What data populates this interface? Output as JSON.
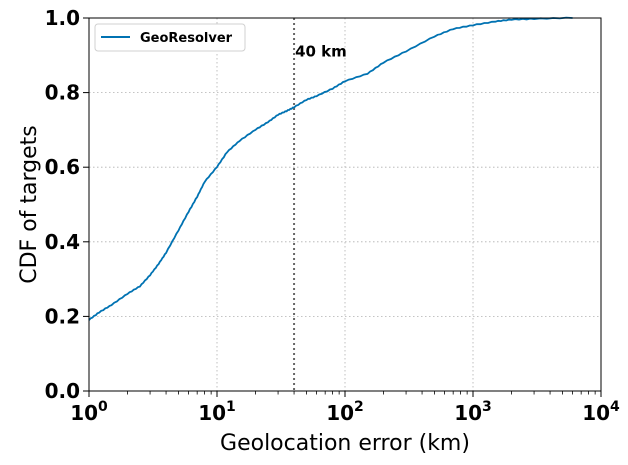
{
  "chart_data": {
    "type": "line",
    "xlabel": "Geolocation error (km)",
    "ylabel": "CDF of targets",
    "xscale": "log",
    "xlim": [
      1,
      10000
    ],
    "ylim": [
      0,
      1
    ],
    "grid": true,
    "legend_position": "top-left",
    "x_ticks": [
      {
        "value": 1,
        "base": "10",
        "exp": "0"
      },
      {
        "value": 10,
        "base": "10",
        "exp": "1"
      },
      {
        "value": 100,
        "base": "10",
        "exp": "2"
      },
      {
        "value": 1000,
        "base": "10",
        "exp": "3"
      },
      {
        "value": 10000,
        "base": "10",
        "exp": "4"
      }
    ],
    "y_ticks": [
      "0.0",
      "0.2",
      "0.4",
      "0.6",
      "0.8",
      "1.0"
    ],
    "series": [
      {
        "name": "GeoResolver",
        "color": "#0072b2",
        "x": [
          1,
          1.2,
          1.5,
          2,
          2.5,
          3,
          3.5,
          4,
          5,
          6,
          7,
          8,
          10,
          12,
          15,
          20,
          25,
          30,
          35,
          40,
          50,
          60,
          80,
          100,
          150,
          200,
          300,
          500,
          700,
          1000,
          1500,
          2000,
          3000,
          6000
        ],
        "y": [
          0.19,
          0.21,
          0.23,
          0.26,
          0.28,
          0.31,
          0.34,
          0.37,
          0.43,
          0.48,
          0.52,
          0.56,
          0.6,
          0.64,
          0.67,
          0.7,
          0.72,
          0.74,
          0.75,
          0.76,
          0.78,
          0.79,
          0.81,
          0.83,
          0.85,
          0.88,
          0.91,
          0.95,
          0.97,
          0.98,
          0.99,
          0.995,
          0.997,
          1.0
        ]
      }
    ],
    "annotations": [
      {
        "text": "40 km",
        "x": 40,
        "y": 0.91,
        "line_x": 40
      }
    ]
  }
}
